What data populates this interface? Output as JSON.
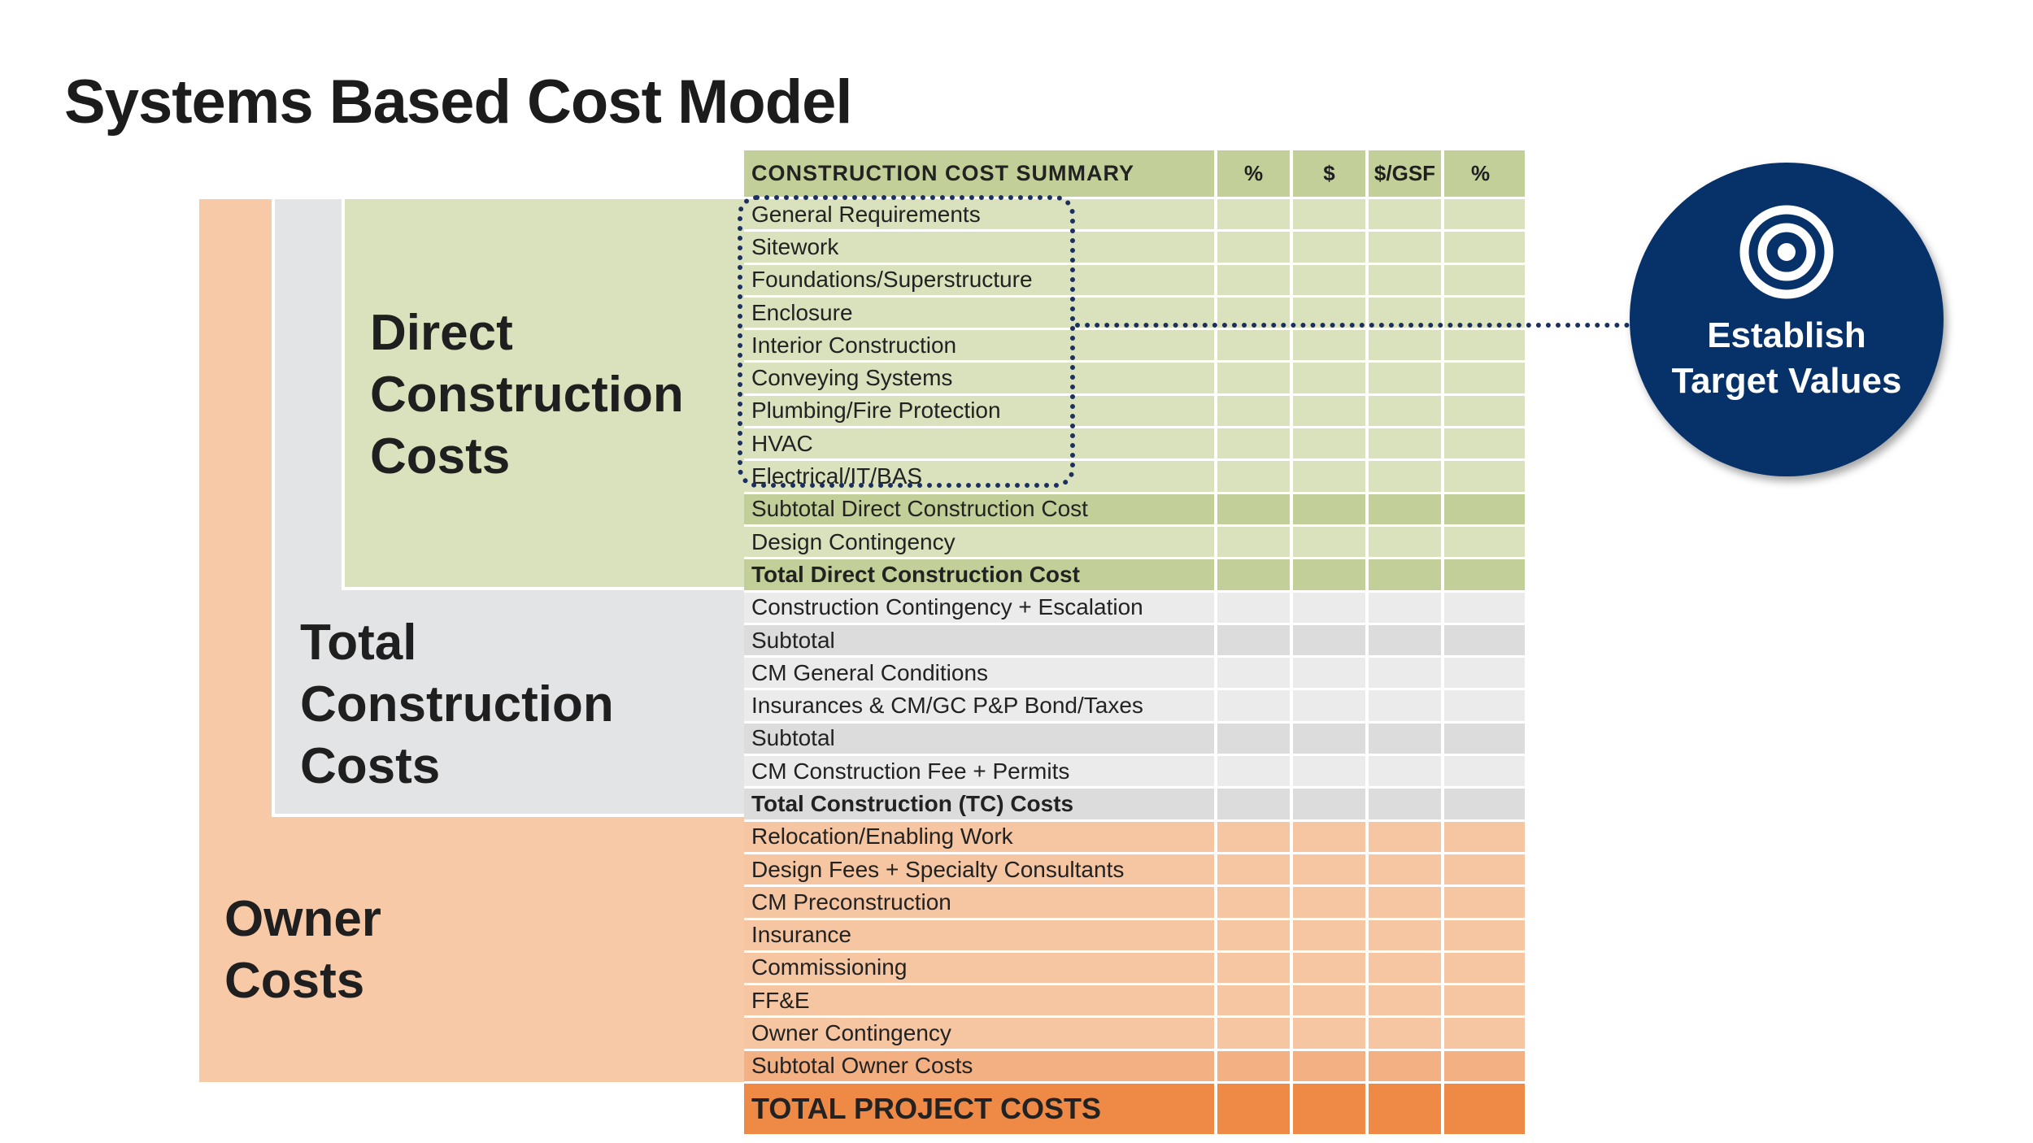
{
  "title": "Systems Based Cost Model",
  "bands": {
    "direct": [
      "Direct",
      "Construction",
      "Costs"
    ],
    "total": [
      "Total",
      "Construction",
      "Costs"
    ],
    "owner": [
      "Owner",
      "Costs"
    ]
  },
  "table": {
    "header": {
      "label": "CONSTRUCTION COST SUMMARY",
      "columns": [
        "%",
        "$",
        "$/GSF",
        "%"
      ]
    },
    "rows": [
      {
        "label": "General Requirements"
      },
      {
        "label": "Sitework"
      },
      {
        "label": "Foundations/Superstructure"
      },
      {
        "label": "Enclosure"
      },
      {
        "label": "Interior Construction"
      },
      {
        "label": "Conveying Systems"
      },
      {
        "label": "Plumbing/Fire Protection"
      },
      {
        "label": "HVAC"
      },
      {
        "label": "Electrical/IT/BAS"
      },
      {
        "label": "Subtotal Direct Construction Cost"
      },
      {
        "label": "Design Contingency"
      },
      {
        "label": "Total Direct Construction Cost"
      },
      {
        "label": "Construction Contingency + Escalation"
      },
      {
        "label": "Subtotal"
      },
      {
        "label": "CM General Conditions"
      },
      {
        "label": "Insurances & CM/GC P&P Bond/Taxes"
      },
      {
        "label": "Subtotal"
      },
      {
        "label": "CM Construction Fee + Permits"
      },
      {
        "label": "Total Construction (TC) Costs"
      },
      {
        "label": "Relocation/Enabling Work"
      },
      {
        "label": "Design Fees + Specialty Consultants"
      },
      {
        "label": "CM Preconstruction"
      },
      {
        "label": "Insurance"
      },
      {
        "label": "Commissioning"
      },
      {
        "label": "FF&E"
      },
      {
        "label": "Owner Contingency"
      },
      {
        "label": "Subtotal Owner Costs"
      },
      {
        "label": "TOTAL PROJECT COSTS"
      }
    ]
  },
  "callout": {
    "icon": "target-icon",
    "lines": [
      "Establish",
      "Target Values"
    ]
  },
  "colors": {
    "navy": "#073169",
    "green_light": "#d9e2bd",
    "green_dark": "#c3cf98",
    "gray_light": "#ebebeb",
    "gray_dark": "#dcdcdd",
    "orange_light": "#f6c6a2",
    "orange_dark": "#f3b083",
    "orange_total": "#ee8a45"
  }
}
